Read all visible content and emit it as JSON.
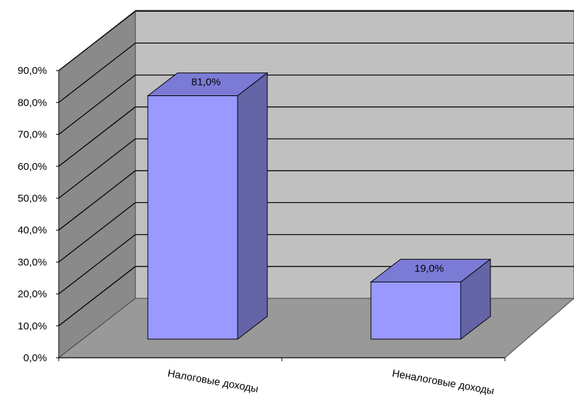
{
  "chart_data": {
    "type": "bar",
    "style": "3d-column",
    "categories": [
      "Налоговые доходы",
      "Неналоговые доходы"
    ],
    "values": [
      81.0,
      19.0
    ],
    "data_labels": [
      "81,0%",
      "19,0%"
    ],
    "y_ticks": [
      "0,0%",
      "10,0%",
      "20,0%",
      "30,0%",
      "40,0%",
      "50,0%",
      "60,0%",
      "70,0%",
      "80,0%",
      "90,0%"
    ],
    "ylim": [
      0,
      90
    ],
    "grid": true,
    "legend": "none",
    "title": "",
    "xlabel": "",
    "ylabel": "",
    "colors": {
      "bar_front": "#9999ff",
      "bar_top": "#7b7bd6",
      "bar_side": "#6464a6",
      "back_wall": "#c0c0c0",
      "side_wall": "#8a8a8a",
      "floor": "#999999",
      "gridline": "#000000"
    }
  }
}
